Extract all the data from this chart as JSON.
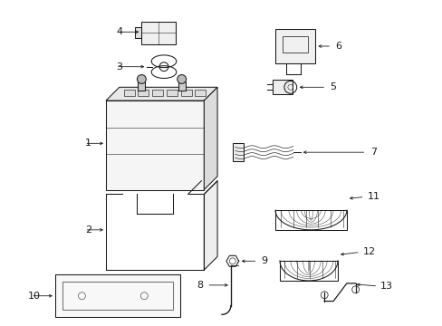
{
  "bg_color": "#ffffff",
  "line_color": "#1a1a1a",
  "fig_width": 4.89,
  "fig_height": 3.6,
  "dpi": 100,
  "label_fontsize": 8.0,
  "lw": 0.75
}
